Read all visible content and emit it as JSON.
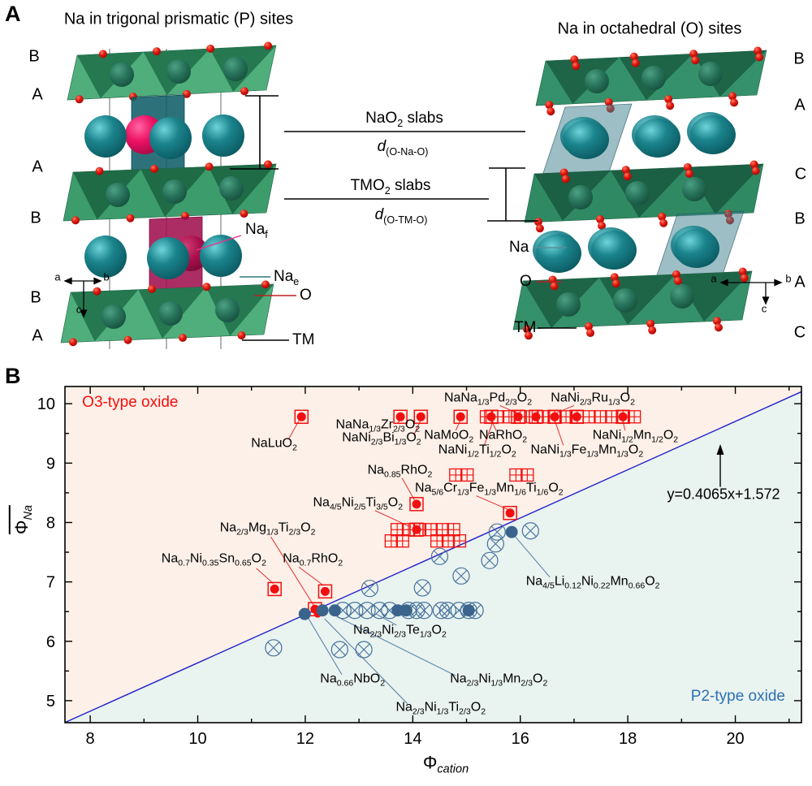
{
  "panel_a": {
    "letter": "A",
    "left": {
      "title": "Na in trigonal prismatic (P) sites",
      "layers": [
        "B",
        "A",
        "A",
        "B",
        "B",
        "A"
      ],
      "labels": {
        "na_f": "Na<sub>f</sub>",
        "na_e": "Na<sub>e</sub>",
        "o": "O",
        "tm": "TM"
      },
      "axis": {
        "a": "a",
        "b": "b",
        "c": "c"
      }
    },
    "right": {
      "title": "Na in octahedral (O) sites",
      "layers": [
        "B",
        "A",
        "C",
        "B",
        "A",
        "C"
      ],
      "labels": {
        "na": "Na",
        "o": "O",
        "tm": "TM"
      },
      "axis": {
        "a": "a",
        "b": "b",
        "c": "c"
      }
    },
    "middle": {
      "nao2_slabs": "NaO<sub>2</sub> slabs",
      "d_o_na_o": "<i>d</i><sub>(O-Na-O)</sub>",
      "tmo2_slabs": "TMO<sub>2</sub> slabs",
      "d_o_tm_o": "<i>d</i><sub>(O-TM-O)</sub>"
    }
  },
  "panel_b": {
    "letter": "B",
    "chart_data": {
      "type": "scatter",
      "xlabel_html": "&#934;<sub><i>cation</i></sub>",
      "ylabel_html": "&#934;<sub><i>Na</i></sub>",
      "xlim": [
        7.53,
        21.23
      ],
      "ylim": [
        4.63,
        10.29
      ],
      "x_ticks_major": [
        8,
        10,
        12,
        14,
        16,
        18,
        20
      ],
      "x_ticks_minor": [
        9,
        11,
        13,
        15,
        17,
        19,
        21
      ],
      "y_ticks_major": [
        5,
        6,
        7,
        8,
        9,
        10
      ],
      "y_ticks_minor": [
        5.5,
        6.5,
        7.5,
        8.5,
        9.5
      ],
      "boundary_line": {
        "equation": "y=0.4065x+1.572",
        "slope": 0.4065,
        "intercept": 1.572,
        "color": "#2222cc"
      },
      "regions": {
        "o3": {
          "label": "O3-type oxide",
          "fill": "#fdf0e8",
          "text_color": "#fb0d0d",
          "label_x": 7.85,
          "label_y": 10.01
        },
        "p2": {
          "label": "P2-type oxide",
          "fill": "#e9f3f0",
          "text_color": "#2e70b2",
          "label_x": 20.05,
          "label_y": 5.07
        }
      },
      "colors": {
        "o3_marker": "#f20f0f",
        "p2_marker": "#46719c",
        "p2_fill": "#3a648c"
      },
      "series": [
        {
          "name": "O3 crossed squares",
          "marker": "square-cross",
          "points": [
            [
              15.37,
              9.78
            ],
            [
              15.58,
              9.78
            ],
            [
              15.79,
              9.78
            ],
            [
              16.0,
              9.78
            ],
            [
              16.22,
              9.78
            ],
            [
              16.43,
              9.78
            ],
            [
              16.64,
              9.78
            ],
            [
              16.85,
              9.78
            ],
            [
              17.06,
              9.78
            ],
            [
              17.28,
              9.78
            ],
            [
              17.49,
              9.78
            ],
            [
              17.7,
              9.78
            ],
            [
              17.91,
              9.78
            ],
            [
              18.12,
              9.78
            ],
            [
              14.8,
              8.8
            ],
            [
              15.01,
              8.8
            ],
            [
              15.92,
              8.8
            ],
            [
              16.13,
              8.8
            ],
            [
              13.71,
              7.88
            ],
            [
              13.92,
              7.88
            ],
            [
              14.13,
              7.88
            ],
            [
              14.34,
              7.88
            ],
            [
              14.55,
              7.88
            ],
            [
              14.76,
              7.88
            ],
            [
              13.6,
              7.69
            ],
            [
              13.81,
              7.69
            ],
            [
              14.45,
              7.69
            ],
            [
              14.66,
              7.69
            ],
            [
              14.87,
              7.69
            ]
          ]
        },
        {
          "name": "O3 dot-in-square",
          "marker": "square-dot",
          "points": [
            [
              11.93,
              9.78
            ],
            [
              13.77,
              9.78
            ],
            [
              14.15,
              9.78
            ],
            [
              14.89,
              9.78
            ],
            [
              15.46,
              9.78
            ],
            [
              15.96,
              9.78
            ],
            [
              16.29,
              9.78
            ],
            [
              16.64,
              9.78
            ],
            [
              17.05,
              9.78
            ],
            [
              17.91,
              9.78
            ],
            [
              14.07,
              8.31
            ],
            [
              15.81,
              8.16
            ],
            [
              14.07,
              7.88
            ],
            [
              11.43,
              6.88
            ],
            [
              12.37,
              6.84
            ],
            [
              12.18,
              6.54
            ]
          ]
        },
        {
          "name": "O3 small dots",
          "marker": "dot",
          "points": [
            [
              12.23,
              6.46
            ]
          ]
        },
        {
          "name": "P2 crossed circles",
          "marker": "circle-x",
          "points": [
            [
              12.7,
              6.52
            ],
            [
              12.92,
              6.52
            ],
            [
              13.15,
              6.52
            ],
            [
              13.38,
              6.52
            ],
            [
              13.57,
              6.52
            ],
            [
              13.92,
              6.52
            ],
            [
              14.07,
              6.52
            ],
            [
              14.21,
              6.52
            ],
            [
              14.53,
              6.52
            ],
            [
              14.65,
              6.52
            ],
            [
              14.86,
              6.52
            ],
            [
              15.04,
              6.52
            ],
            [
              15.16,
              6.52
            ],
            [
              13.2,
              6.89
            ],
            [
              14.18,
              6.9
            ],
            [
              14.5,
              7.43
            ],
            [
              14.9,
              7.1
            ],
            [
              15.43,
              7.36
            ],
            [
              15.54,
              7.64
            ],
            [
              15.57,
              7.84
            ],
            [
              16.19,
              7.86
            ],
            [
              11.41,
              5.89
            ],
            [
              12.64,
              5.86
            ],
            [
              13.09,
              5.86
            ]
          ]
        },
        {
          "name": "P2 filled circles",
          "marker": "circle-fill",
          "points": [
            [
              11.99,
              6.46
            ],
            [
              12.32,
              6.52
            ],
            [
              12.55,
              6.52
            ],
            [
              13.72,
              6.52
            ],
            [
              13.88,
              6.52
            ],
            [
              15.04,
              6.52
            ],
            [
              15.84,
              7.84
            ]
          ]
        }
      ],
      "annotations": [
        {
          "html": "NaLuO<sub>2</sub>",
          "x": 11.42,
          "y": 9.3,
          "leader": [
            11.7,
            9.42,
            11.88,
            9.71
          ],
          "lc": "o3"
        },
        {
          "html": "NaNa<sub>1/3</sub>Zr<sub>2/3</sub>O<sub>2</sub>",
          "x": 13.35,
          "y": 9.62,
          "leader": [
            13.72,
            9.68,
            13.78,
            9.73
          ],
          "lc": "o3"
        },
        {
          "html": "NaNi<sub>2/3</sub>Bi<sub>1/3</sub>O<sub>2</sub>",
          "x": 13.42,
          "y": 9.4,
          "leader": [
            14.02,
            9.47,
            14.14,
            9.71
          ],
          "lc": "o3"
        },
        {
          "html": "NaMoO<sub>2</sub>",
          "x": 14.67,
          "y": 9.44,
          "leader": [
            14.8,
            9.55,
            14.88,
            9.71
          ],
          "lc": "o3"
        },
        {
          "html": "NaRhO<sub>2</sub>",
          "x": 15.68,
          "y": 9.44,
          "leader": [
            15.55,
            9.55,
            15.47,
            9.71
          ],
          "lc": "o3"
        },
        {
          "html": "NaNa<sub>1/3</sub>Pd<sub>2/3</sub>O<sub>2</sub>",
          "x": 15.4,
          "y": 10.07,
          "leader": [
            15.62,
            9.97,
            15.95,
            9.84
          ],
          "lc": "o3"
        },
        {
          "html": "NaNi<sub>2/3</sub>Ru<sub>1/3</sub>O<sub>2</sub>",
          "x": 17.35,
          "y": 10.07,
          "leader": [
            17.0,
            9.97,
            16.66,
            9.84
          ],
          "lc": "o3"
        },
        {
          "html": "NaNi<sub>1/2</sub>Ti<sub>1/2</sub>O<sub>2</sub>",
          "x": 15.2,
          "y": 9.19,
          "leader": [
            15.33,
            9.3,
            15.49,
            9.7
          ],
          "lc": "o3"
        },
        {
          "html": "NaNi<sub>1/3</sub>Fe<sub>1/3</sub>Mn<sub>1/3</sub>O<sub>2</sub>",
          "x": 17.24,
          "y": 9.19,
          "leader": [
            16.8,
            9.3,
            16.65,
            9.7
          ],
          "lc": "o3"
        },
        {
          "html": "NaNi<sub>1/2</sub>Mn<sub>1/2</sub>O<sub>2</sub>",
          "x": 18.14,
          "y": 9.44,
          "leader": [
            17.95,
            9.55,
            17.91,
            9.7
          ],
          "lc": "o3"
        },
        {
          "html": "Na<sub>0.85</sub>RhO<sub>2</sub>",
          "x": 13.76,
          "y": 8.86,
          "leader": [
            13.8,
            8.75,
            14.03,
            8.38
          ],
          "lc": "o3"
        },
        {
          "html": "Na<sub>5/6</sub>Cr<sub>1/3</sub>Fe<sub>1/3</sub>Mn<sub>1/6</sub>Ti<sub>1/6</sub>O<sub>2</sub>",
          "x": 15.42,
          "y": 8.56,
          "leader": [
            15.18,
            8.45,
            15.77,
            8.22
          ],
          "lc": "o3"
        },
        {
          "html": "Na<sub>4/5</sub>Ni<sub>2/5</sub>Ti<sub>3/5</sub>O<sub>2</sub>",
          "x": 12.98,
          "y": 8.31,
          "leader": [
            13.3,
            8.2,
            13.97,
            7.92
          ],
          "lc": "o3"
        },
        {
          "html": "Na<sub>2/3</sub>Mg<sub>1/3</sub>Ti<sub>2/3</sub>O<sub>2</sub>",
          "x": 11.3,
          "y": 7.88,
          "leader": [
            11.36,
            7.76,
            12.16,
            6.6
          ],
          "lc": "o3"
        },
        {
          "html": "Na<sub>0.7</sub>Ni<sub>0.35</sub>Sn<sub>0.65</sub>O<sub>2</sub>",
          "x": 10.3,
          "y": 7.36,
          "leader": [
            11.09,
            7.23,
            11.41,
            6.97
          ],
          "lc": "o3"
        },
        {
          "html": "Na<sub>0.7</sub>RhO<sub>2</sub>",
          "x": 12.14,
          "y": 7.36,
          "leader": [
            11.88,
            7.25,
            12.34,
            6.94
          ],
          "lc": "o3"
        },
        {
          "html": "Na<sub>2/3</sub>Ni<sub>2/3</sub>Te<sub>1/3</sub>O<sub>2</sub>",
          "x": 13.76,
          "y": 6.16,
          "leader": [
            13.7,
            6.27,
            13.32,
            6.46
          ],
          "lc": "p2"
        },
        {
          "html": "Na<sub>0.66</sub>NbO<sub>2</sub>",
          "x": 12.88,
          "y": 5.34,
          "leader": [
            12.68,
            5.44,
            12.05,
            6.4
          ],
          "lc": "p2"
        },
        {
          "html": "Na<sub>2/3</sub>Ni<sub>1/3</sub>Mn<sub>2/3</sub>O<sub>2</sub>",
          "x": 15.6,
          "y": 5.34,
          "leader": [
            14.8,
            5.42,
            12.58,
            6.42
          ],
          "lc": "p2"
        },
        {
          "html": "Na<sub>2/3</sub>Ni<sub>1/3</sub>Ti<sub>2/3</sub>O<sub>2</sub>",
          "x": 14.52,
          "y": 4.86,
          "leader": [
            13.9,
            4.95,
            12.36,
            6.38
          ],
          "lc": "p2"
        },
        {
          "html": "Na<sub>4/5</sub>Li<sub>0.12</sub>Ni<sub>0.22</sub>Mn<sub>0.66</sub>O<sub>2</sub>",
          "x": 17.35,
          "y": 6.98,
          "leader": [
            16.55,
            7.08,
            15.9,
            7.77
          ],
          "lc": "p2"
        }
      ],
      "equation_label": {
        "text": "y=0.4065x+1.572",
        "x": 19.78,
        "y": 8.47
      },
      "equation_arrow": {
        "x": 19.72,
        "y_from": 8.6,
        "y_to": 9.32
      }
    }
  }
}
